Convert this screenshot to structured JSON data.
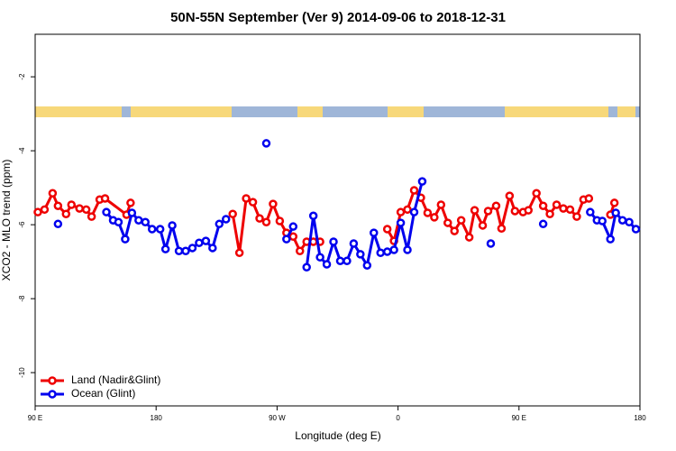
{
  "chart_data": {
    "type": "line",
    "title": "50N-55N September (Ver 9)   2014-09-06 to 2018-12-31",
    "x_label": "Longitude (deg E)",
    "y_label": "XCO2 - MLO trend (ppm)",
    "xlim": [
      90,
      540
    ],
    "ylim": [
      -10.9,
      -0.85
    ],
    "xticks": [
      {
        "value": 90,
        "label": "90 E"
      },
      180,
      {
        "value": 270,
        "label": "90 W"
      },
      {
        "value": 360,
        "label": "0"
      },
      {
        "value": 450,
        "label": "90 E"
      },
      {
        "value": 540,
        "label": "180"
      }
    ],
    "yticks": [
      -10,
      -8,
      -6,
      -4,
      -2
    ],
    "legend": "bottom left",
    "series": [
      {
        "name": "Land (Nadir&Glint)",
        "color": "#ee0000",
        "x": [
          92,
          97,
          103,
          107,
          113,
          117,
          123,
          128,
          132,
          138,
          142,
          158,
          161,
          200,
          237,
          242,
          247,
          252,
          257,
          262,
          267,
          272,
          277,
          282,
          287,
          292,
          297,
          302,
          327,
          352,
          357,
          362,
          367,
          372,
          377,
          382,
          387,
          392,
          397,
          402,
          407,
          413,
          417,
          423,
          427,
          433,
          437,
          443,
          447,
          453,
          457,
          463,
          468,
          473,
          478,
          483,
          488,
          493,
          498,
          502,
          510,
          518,
          521
        ],
        "values": [
          -5.66,
          -5.59,
          -5.15,
          -5.49,
          -5.71,
          -5.46,
          -5.56,
          -5.59,
          -5.78,
          -5.32,
          -5.29,
          -5.73,
          -5.41,
          null,
          -5.71,
          -6.76,
          -5.29,
          -5.39,
          -5.83,
          -5.93,
          -5.44,
          -5.9,
          -6.22,
          -6.32,
          -6.71,
          -6.46,
          -6.46,
          -6.46,
          null,
          -6.12,
          -6.44,
          -5.66,
          -5.59,
          -5.07,
          -5.27,
          -5.68,
          -5.8,
          -5.46,
          -5.95,
          -6.17,
          -5.88,
          -6.34,
          -5.61,
          -6.02,
          -5.63,
          -5.49,
          -6.1,
          -5.22,
          -5.63,
          -5.66,
          -5.61,
          -5.15,
          -5.49,
          -5.71,
          -5.46,
          -5.56,
          -5.59,
          -5.78,
          -5.32,
          -5.29,
          null,
          -5.73,
          -5.41
        ]
      },
      {
        "name": "Ocean (Glint)",
        "color": "#0000ee",
        "x": [
          107,
          125,
          143,
          148,
          152,
          157,
          162,
          167,
          172,
          177,
          183,
          187,
          192,
          197,
          202,
          207,
          212,
          217,
          222,
          227,
          232,
          247,
          262,
          270,
          277,
          282,
          287,
          292,
          297,
          302,
          307,
          312,
          317,
          322,
          327,
          332,
          337,
          342,
          347,
          352,
          357,
          362,
          367,
          372,
          378,
          400,
          429,
          450,
          468,
          485,
          503,
          508,
          512,
          518,
          522,
          527,
          532,
          537
        ],
        "values": [
          -5.98,
          null,
          -5.66,
          -5.88,
          -5.93,
          -6.39,
          -5.68,
          -5.88,
          -5.93,
          -6.12,
          -6.12,
          -6.66,
          -6.02,
          -6.71,
          -6.71,
          -6.63,
          -6.49,
          -6.44,
          -6.63,
          -5.98,
          -5.85,
          null,
          -3.8,
          null,
          -6.39,
          -6.05,
          null,
          -7.15,
          -5.76,
          -6.88,
          -7.07,
          -6.46,
          -6.98,
          -6.98,
          -6.51,
          -6.8,
          -7.1,
          -6.22,
          -6.76,
          -6.73,
          -6.68,
          -5.95,
          -6.68,
          -5.66,
          -4.83,
          null,
          -6.51,
          null,
          -5.98,
          null,
          -5.66,
          -5.88,
          -5.9,
          -6.39,
          -5.68,
          -5.88,
          -5.93,
          -6.12
        ]
      }
    ]
  }
}
